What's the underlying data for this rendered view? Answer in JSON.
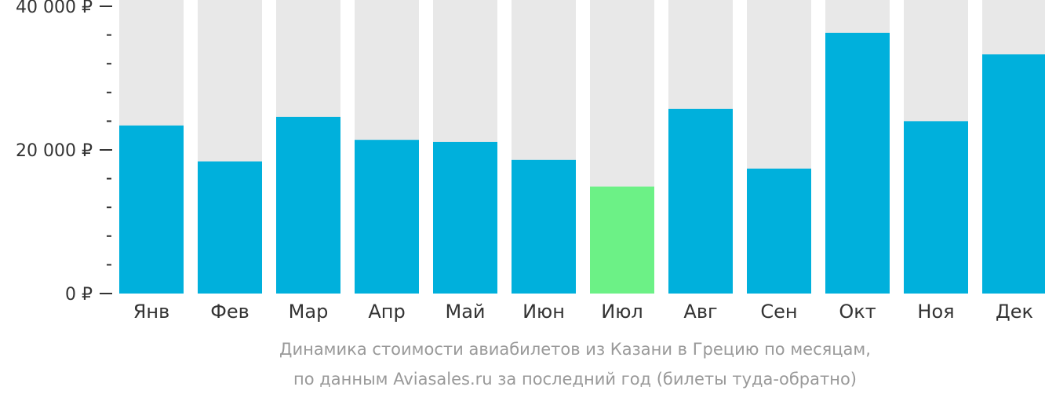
{
  "chart_data": {
    "type": "bar",
    "categories": [
      "Янв",
      "Фев",
      "Мар",
      "Апр",
      "Май",
      "Июн",
      "Июл",
      "Авг",
      "Сен",
      "Окт",
      "Ноя",
      "Дек"
    ],
    "values": [
      23400,
      18400,
      24600,
      21400,
      21100,
      18600,
      14900,
      25700,
      17400,
      36300,
      24000,
      33300
    ],
    "ylim": [
      0,
      40000
    ],
    "yticks": [
      {
        "value": 0,
        "label": "0 ₽"
      },
      {
        "value": 20000,
        "label": "20 000 ₽"
      },
      {
        "value": 40000,
        "label": "40 000 ₽"
      }
    ],
    "minor_tick_step": 4000,
    "highlight_category": "Июл",
    "colors": {
      "bar": "#00b0dc",
      "highlight": "#6cf186",
      "track": "#e8e8e8",
      "axis": "#333333"
    },
    "grid": false,
    "legend": "none"
  },
  "caption": {
    "line1": "Динамика стоимости авиабилетов из Казани в Грецию по месяцам,",
    "line2": "по данным Aviasales.ru за последний год (билеты туда-обратно)"
  }
}
